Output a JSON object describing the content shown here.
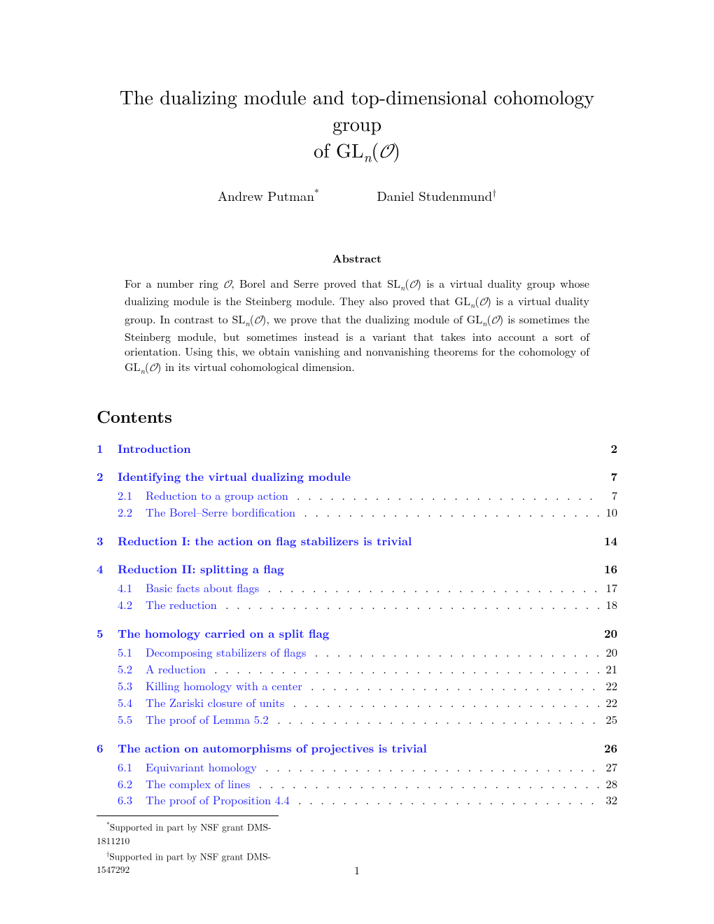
{
  "title_line1": "The dualizing module and top-dimensional cohomology group",
  "title_line2_prefix": "of GL",
  "title_line2_n": "n",
  "title_line2_O": "𝒪",
  "authors": {
    "a1": "Andrew Putman",
    "a1_mark": "*",
    "a2": "Daniel Studenmund",
    "a2_mark": "†"
  },
  "abstract_label": "Abstract",
  "abstract_html": "For a number ring 𝒪, Borel and Serre proved that SL<sub>n</sub>(𝒪) is a virtual duality group whose dualizing module is the Steinberg module. They also proved that GL<sub>n</sub>(𝒪) is a virtual duality group. In contrast to SL<sub>n</sub>(𝒪), we prove that the dualizing module of GL<sub>n</sub>(𝒪) is sometimes the Steinberg module, but sometimes instead is a variant that takes into account a sort of orientation. Using this, we obtain vanishing and nonvanishing theorems for the cohomology of GL<sub>n</sub>(𝒪) in its virtual cohomological dimension.",
  "contents_label": "Contents",
  "toc": [
    {
      "num": "1",
      "title": "Introduction",
      "page": "2",
      "subs": []
    },
    {
      "num": "2",
      "title": "Identifying the virtual dualizing module",
      "page": "7",
      "subs": [
        {
          "num": "2.1",
          "title": "Reduction to a group action",
          "page": "7"
        },
        {
          "num": "2.2",
          "title": "The Borel–Serre bordification",
          "page": "10"
        }
      ]
    },
    {
      "num": "3",
      "title": "Reduction I: the action on flag stabilizers is trivial",
      "page": "14",
      "subs": []
    },
    {
      "num": "4",
      "title": "Reduction II: splitting a flag",
      "page": "16",
      "subs": [
        {
          "num": "4.1",
          "title": "Basic facts about flags",
          "page": "17"
        },
        {
          "num": "4.2",
          "title": "The reduction",
          "page": "18"
        }
      ]
    },
    {
      "num": "5",
      "title": "The homology carried on a split flag",
      "page": "20",
      "subs": [
        {
          "num": "5.1",
          "title": "Decomposing stabilizers of flags",
          "page": "20"
        },
        {
          "num": "5.2",
          "title": "A reduction",
          "page": "21"
        },
        {
          "num": "5.3",
          "title": "Killing homology with a center",
          "page": "22"
        },
        {
          "num": "5.4",
          "title": "The Zariski closure of units",
          "page": "22"
        },
        {
          "num": "5.5",
          "title": "The proof of Lemma 5.2",
          "page": "25"
        }
      ]
    },
    {
      "num": "6",
      "title": "The action on automorphisms of projectives is trivial",
      "page": "26",
      "subs": [
        {
          "num": "6.1",
          "title": "Equivariant homology",
          "page": "27"
        },
        {
          "num": "6.2",
          "title": "The complex of lines",
          "page": "28"
        },
        {
          "num": "6.3",
          "title": "The proof of Proposition 4.4",
          "page": "32"
        }
      ]
    }
  ],
  "footnotes": {
    "f1_mark": "*",
    "f1_text": "Supported in part by NSF grant DMS-1811210",
    "f2_mark": "†",
    "f2_text": "Supported in part by NSF grant DMS-1547292"
  },
  "page_number": "1",
  "colors": {
    "link": "#1a1aff",
    "text": "#000000",
    "background": "#ffffff"
  },
  "dot_leader": ". . . . . . . . . . . . . . . . . . . . . . . . . . . . . . . . . . . . . . . . . . . . . . . . . . . . . . . . . . . . . . . . . . . . . . . . . . . . . . . . . . . . . . . . . . . . . . . . . . . ."
}
